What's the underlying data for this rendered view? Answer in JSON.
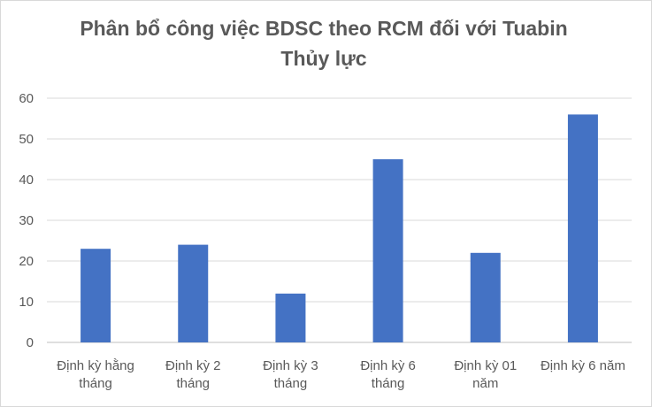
{
  "chart_data": {
    "type": "bar",
    "title_lines": [
      "Phân bổ công việc BDSC theo RCM đối với Tuabin",
      "Thủy lực"
    ],
    "categories": [
      [
        "Định kỳ hằng",
        "tháng"
      ],
      [
        "Định kỳ 2",
        "tháng"
      ],
      [
        "Định kỳ 3",
        "tháng"
      ],
      [
        "Định kỳ 6",
        "tháng"
      ],
      [
        "Định kỳ 01",
        "năm"
      ],
      [
        "Định kỳ 6 năm"
      ]
    ],
    "values": [
      23,
      24,
      12,
      45,
      22,
      56
    ],
    "ylim": [
      0,
      60
    ],
    "yticks": [
      0,
      10,
      20,
      30,
      40,
      50,
      60
    ],
    "xlabel": "",
    "ylabel": "",
    "grid": true,
    "bar_color": "#4472c4",
    "grid_color": "#d9d9d9",
    "text_color": "#595959"
  }
}
